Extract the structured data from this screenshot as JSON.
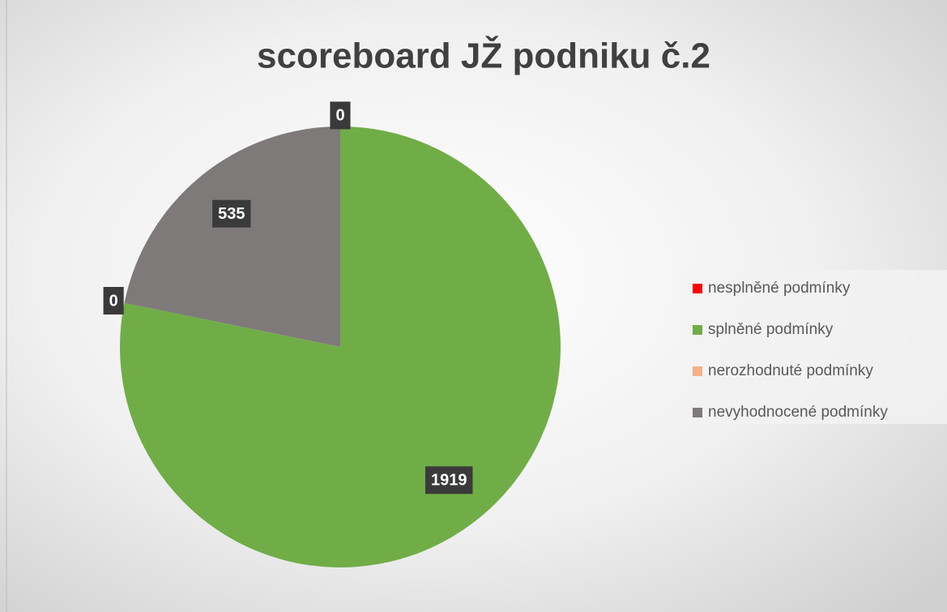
{
  "chart_data": {
    "type": "pie",
    "title": "scoreboard JŽ podniku č.2",
    "categories": [
      "nesplněné podmínky",
      "splněné podmínky",
      "nerozhodnuté podmínky",
      "nevyhodnocené podmínky"
    ],
    "values": [
      0,
      1919,
      0,
      535
    ],
    "colors": [
      "#ff0000",
      "#70ad47",
      "#f4b183",
      "#7f7a7a"
    ],
    "legend": "right"
  }
}
